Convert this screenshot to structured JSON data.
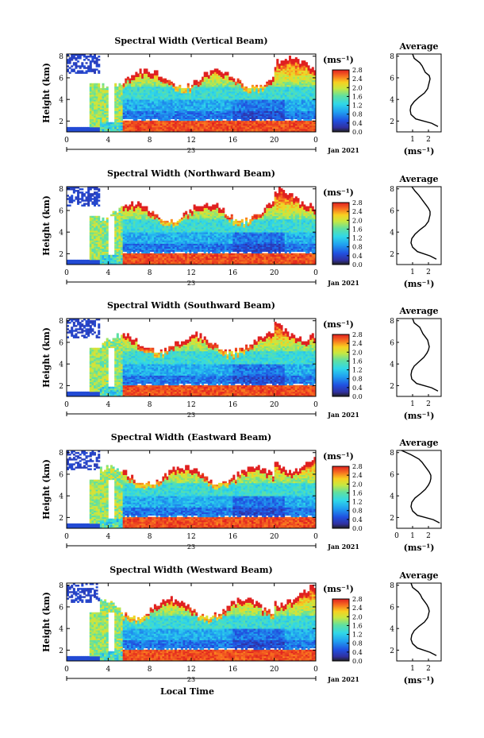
{
  "chart_data": [
    {
      "type": "heatmap",
      "title": "Spectral Width (Vertical Beam)",
      "ylabel": "Height (km)",
      "yticks": [
        "2",
        "4",
        "6",
        "8"
      ],
      "xticks": [
        "0",
        "4",
        "8",
        "12",
        "16",
        "20",
        "0"
      ],
      "date_day": "23",
      "date_label": "Jan 2021",
      "ylim": [
        1,
        8.2
      ],
      "xlim": [
        0,
        24
      ],
      "colorbar": {
        "unit": "(ms⁻¹)",
        "ticks": [
          "0.0",
          "0.4",
          "0.8",
          "1.2",
          "1.6",
          "2.0",
          "2.4",
          "2.8"
        ]
      },
      "average_profile": {
        "title": "Average",
        "xlabel": "(ms⁻¹)",
        "xticks": [
          "1",
          "2"
        ],
        "yticks": [
          "2",
          "4",
          "6",
          "8"
        ],
        "width": [
          2.6,
          2.2,
          1.2,
          0.9,
          0.85,
          0.9,
          1.1,
          1.4,
          1.75,
          1.95,
          2.0,
          2.05,
          2.1,
          2.05,
          1.8,
          1.7,
          1.6,
          1.45,
          1.1,
          1.0
        ],
        "height": [
          1.5,
          1.8,
          2.2,
          2.6,
          3.0,
          3.4,
          3.8,
          4.2,
          4.6,
          5.0,
          5.3,
          5.6,
          5.9,
          6.2,
          6.5,
          6.8,
          7.1,
          7.4,
          7.8,
          8.2
        ]
      }
    },
    {
      "type": "heatmap",
      "title": "Spectral Width (Northward Beam)",
      "ylabel": "Height (km)",
      "yticks": [
        "2",
        "4",
        "6",
        "8"
      ],
      "xticks": [
        "0",
        "4",
        "8",
        "12",
        "16",
        "20",
        "0"
      ],
      "date_day": "23",
      "date_label": "Jan 2021",
      "ylim": [
        1,
        8.2
      ],
      "xlim": [
        0,
        24
      ],
      "colorbar": {
        "unit": "(ms⁻¹)",
        "ticks": [
          "0.0",
          "0.4",
          "0.8",
          "1.2",
          "1.6",
          "2.0",
          "2.4",
          "2.8"
        ]
      },
      "average_profile": {
        "title": "Average",
        "xlabel": "(ms⁻¹)",
        "xticks": [
          "1",
          "2"
        ],
        "yticks": [
          "2",
          "4",
          "6",
          "8"
        ],
        "width": [
          2.5,
          2.1,
          1.3,
          1.0,
          0.9,
          0.95,
          1.15,
          1.45,
          1.8,
          2.0,
          2.05,
          2.1,
          2.1,
          2.0,
          1.85,
          1.7,
          1.55,
          1.4,
          1.15,
          0.95
        ],
        "height": [
          1.5,
          1.8,
          2.2,
          2.6,
          3.0,
          3.4,
          3.8,
          4.2,
          4.6,
          5.0,
          5.3,
          5.6,
          5.9,
          6.2,
          6.5,
          6.8,
          7.1,
          7.4,
          7.8,
          8.2
        ]
      }
    },
    {
      "type": "heatmap",
      "title": "Spectral Width (Southward Beam)",
      "ylabel": "Height (km)",
      "yticks": [
        "2",
        "4",
        "6",
        "8"
      ],
      "xticks": [
        "0",
        "4",
        "8",
        "12",
        "16",
        "20",
        "0"
      ],
      "date_day": "23",
      "date_label": "Jan 2021",
      "ylim": [
        1,
        8.2
      ],
      "xlim": [
        0,
        24
      ],
      "colorbar": {
        "unit": "(ms⁻¹)",
        "ticks": [
          "0.0",
          "0.4",
          "0.8",
          "1.2",
          "1.6",
          "2.0",
          "2.4",
          "2.8"
        ]
      },
      "average_profile": {
        "title": "Average",
        "xlabel": "(ms⁻¹)",
        "xticks": [
          "1",
          "2"
        ],
        "yticks": [
          "2",
          "4",
          "6",
          "8"
        ],
        "width": [
          2.6,
          2.2,
          1.25,
          0.95,
          0.9,
          0.95,
          1.1,
          1.4,
          1.7,
          1.9,
          2.0,
          2.05,
          2.0,
          1.95,
          1.8,
          1.65,
          1.55,
          1.45,
          1.1,
          1.0
        ],
        "height": [
          1.5,
          1.8,
          2.2,
          2.6,
          3.0,
          3.4,
          3.8,
          4.2,
          4.6,
          5.0,
          5.3,
          5.6,
          5.9,
          6.2,
          6.5,
          6.8,
          7.1,
          7.4,
          7.8,
          8.2
        ]
      }
    },
    {
      "type": "heatmap",
      "title": "Spectral Width (Eastward Beam)",
      "ylabel": "Height (km)",
      "yticks": [
        "2",
        "4",
        "6",
        "8"
      ],
      "xticks": [
        "0",
        "4",
        "8",
        "12",
        "16",
        "20",
        "0"
      ],
      "date_day": "23",
      "date_label": "Jan 2021",
      "ylim": [
        1,
        8.2
      ],
      "xlim": [
        0,
        24
      ],
      "colorbar": {
        "unit": "(ms⁻¹)",
        "ticks": [
          "0.0",
          "0.4",
          "0.8",
          "1.2",
          "1.6",
          "2.0",
          "2.4",
          "2.8"
        ]
      },
      "average_profile": {
        "title": "Average",
        "xlabel": "(ms⁻¹)",
        "xticks": [
          "0",
          "1",
          "2"
        ],
        "yticks": [
          "2",
          "4",
          "6",
          "8"
        ],
        "width": [
          2.7,
          2.3,
          1.3,
          1.0,
          0.9,
          0.95,
          1.15,
          1.5,
          1.8,
          2.0,
          2.1,
          2.15,
          2.15,
          2.05,
          1.9,
          1.75,
          1.6,
          1.4,
          0.9,
          0.3
        ],
        "height": [
          1.5,
          1.8,
          2.2,
          2.6,
          3.0,
          3.4,
          3.8,
          4.2,
          4.6,
          5.0,
          5.3,
          5.6,
          5.9,
          6.2,
          6.5,
          6.8,
          7.1,
          7.4,
          7.8,
          8.2
        ]
      }
    },
    {
      "type": "heatmap",
      "title": "Spectral Width (Westward Beam)",
      "ylabel": "Height (km)",
      "yticks": [
        "2",
        "4",
        "6",
        "8"
      ],
      "xticks": [
        "0",
        "4",
        "8",
        "12",
        "16",
        "20",
        "0"
      ],
      "date_day": "23",
      "date_label": "Jan 2021",
      "xlabel": "Local Time",
      "ylim": [
        1,
        8.2
      ],
      "xlim": [
        0,
        24
      ],
      "colorbar": {
        "unit": "(ms⁻¹)",
        "ticks": [
          "0.0",
          "0.4",
          "0.8",
          "1.2",
          "1.6",
          "2.0",
          "2.4",
          "2.8"
        ]
      },
      "average_profile": {
        "title": "Average",
        "xlabel": "(ms⁻¹)",
        "xticks": [
          "1",
          "2"
        ],
        "yticks": [
          "2",
          "4",
          "6",
          "8"
        ],
        "width": [
          2.5,
          2.1,
          1.3,
          1.0,
          0.9,
          0.95,
          1.1,
          1.4,
          1.75,
          1.95,
          2.0,
          2.05,
          2.0,
          1.9,
          1.75,
          1.6,
          1.5,
          1.35,
          1.0,
          0.9
        ],
        "height": [
          1.5,
          1.8,
          2.2,
          2.6,
          3.0,
          3.4,
          3.8,
          4.2,
          4.6,
          5.0,
          5.3,
          5.6,
          5.9,
          6.2,
          6.5,
          6.8,
          7.1,
          7.4,
          7.8,
          8.2
        ]
      }
    }
  ]
}
